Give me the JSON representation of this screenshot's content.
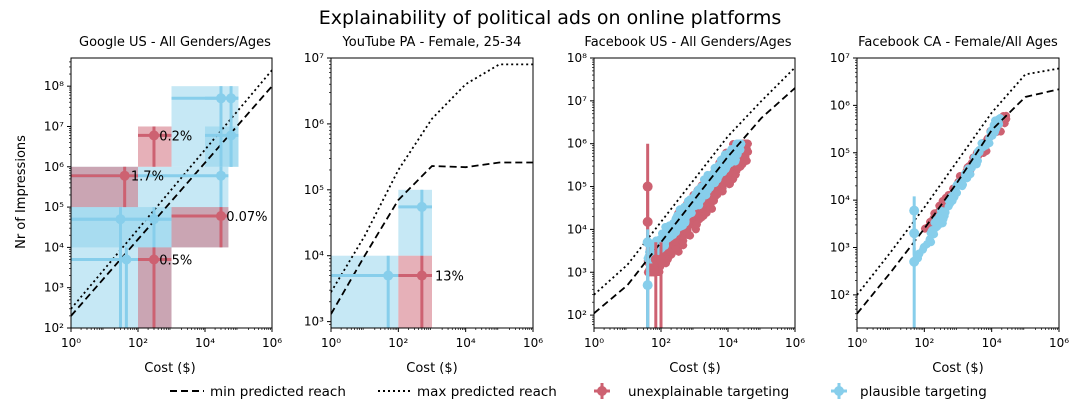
{
  "title": "Explainability of political ads on online platforms",
  "colors": {
    "unexplainable": "#cd6171",
    "plausible": "#87ceeb",
    "line": "#000000"
  },
  "legend": {
    "min": "min predicted reach",
    "max": "max predicted reach",
    "unexplainable": "unexplainable targeting",
    "plausible": "plausible targeting"
  },
  "chart_data": [
    {
      "type": "scatter",
      "title": "Google US - All Genders/Ages",
      "xlabel": "Cost ($)",
      "ylabel": "Nr of Impressions",
      "xscale": "log",
      "yscale": "log",
      "xlim": [
        1,
        1000000
      ],
      "ylim": [
        100,
        500000000
      ],
      "xticks": [
        1,
        100,
        10000,
        1000000
      ],
      "yticks": [
        100,
        1000,
        10000,
        100000,
        1000000,
        10000000,
        100000000
      ],
      "min_reach": [
        [
          1,
          200
        ],
        [
          1000000,
          100000000
        ]
      ],
      "max_reach": [
        [
          1,
          300
        ],
        [
          1000000,
          250000000
        ]
      ],
      "boxes": [
        {
          "cls": "plausible",
          "x": [
            1,
            1000
          ],
          "y": [
            100,
            100000
          ]
        },
        {
          "cls": "plausible",
          "x": [
            1,
            50000
          ],
          "y": [
            10000,
            1000000
          ]
        },
        {
          "cls": "plausible",
          "x": [
            1000,
            100000
          ],
          "y": [
            1000000,
            100000000
          ]
        },
        {
          "cls": "plausible",
          "x": [
            10000,
            100000
          ],
          "y": [
            1000000,
            10000000
          ]
        },
        {
          "cls": "unexplainable",
          "x": [
            100,
            1000
          ],
          "y": [
            1000000,
            10000000
          ]
        },
        {
          "cls": "unexplainable",
          "x": [
            1,
            100
          ],
          "y": [
            100000,
            1000000
          ]
        },
        {
          "cls": "unexplainable",
          "x": [
            1000,
            50000
          ],
          "y": [
            10000,
            100000
          ]
        },
        {
          "cls": "unexplainable",
          "x": [
            100,
            1000
          ],
          "y": [
            100,
            10000
          ]
        }
      ],
      "points": [
        {
          "cls": "plausible",
          "x": 30,
          "y": 50000,
          "xerr": [
            1,
            1000
          ],
          "yerr": [
            100,
            100000
          ]
        },
        {
          "cls": "plausible",
          "x": 45,
          "y": 5000,
          "xerr": [
            1,
            100
          ],
          "yerr": [
            100,
            10000
          ]
        },
        {
          "cls": "plausible",
          "x": 300,
          "y": 50000,
          "xerr": [
            1,
            1000
          ],
          "yerr": [
            100,
            100000
          ]
        },
        {
          "cls": "plausible",
          "x": 30000,
          "y": 600000,
          "xerr": [
            1,
            50000
          ],
          "yerr": [
            10000,
            1000000
          ]
        },
        {
          "cls": "plausible",
          "x": 30000,
          "y": 50000000,
          "xerr": [
            1000,
            100000
          ],
          "yerr": [
            1000000,
            100000000
          ]
        },
        {
          "cls": "plausible",
          "x": 60000,
          "y": 50000000,
          "xerr": [
            10000,
            100000
          ],
          "yerr": [
            1000000,
            100000000
          ]
        },
        {
          "cls": "plausible",
          "x": 60000,
          "y": 6000000,
          "xerr": [
            10000,
            100000
          ],
          "yerr": [
            1000000,
            10000000
          ]
        },
        {
          "cls": "unexplainable",
          "x": 300,
          "y": 6000000,
          "xerr": [
            100,
            1000
          ],
          "yerr": [
            1000000,
            10000000
          ]
        },
        {
          "cls": "unexplainable",
          "x": 40,
          "y": 600000,
          "xerr": [
            1,
            100
          ],
          "yerr": [
            100000,
            1000000
          ]
        },
        {
          "cls": "unexplainable",
          "x": 30000,
          "y": 60000,
          "xerr": [
            1000,
            50000
          ],
          "yerr": [
            10000,
            100000
          ]
        },
        {
          "cls": "unexplainable",
          "x": 300,
          "y": 5000,
          "xerr": [
            100,
            1000
          ],
          "yerr": [
            100,
            10000
          ]
        }
      ],
      "annotations": [
        {
          "text": "0.2%",
          "x": 350,
          "y": 6000000
        },
        {
          "text": "1.7%",
          "x": 50,
          "y": 600000
        },
        {
          "text": "0.07%",
          "x": 35000,
          "y": 60000
        },
        {
          "text": "0.5%",
          "x": 350,
          "y": 5000
        }
      ]
    },
    {
      "type": "scatter",
      "title": "YouTube PA - Female, 25-34",
      "xlabel": "Cost ($)",
      "ylabel": "",
      "xscale": "log",
      "yscale": "log",
      "xlim": [
        1,
        1000000
      ],
      "ylim": [
        800,
        10000000
      ],
      "xticks": [
        1,
        100,
        10000,
        1000000
      ],
      "yticks": [
        1000,
        10000,
        100000,
        1000000,
        10000000
      ],
      "min_reach": [
        [
          1,
          1300
        ],
        [
          10,
          10000
        ],
        [
          100,
          70000
        ],
        [
          1000,
          230000
        ],
        [
          10000,
          220000
        ],
        [
          100000,
          260000
        ],
        [
          1000000,
          260000
        ]
      ],
      "max_reach": [
        [
          1,
          2800
        ],
        [
          10,
          20000
        ],
        [
          100,
          200000
        ],
        [
          1000,
          1200000
        ],
        [
          10000,
          4000000
        ],
        [
          100000,
          8000000
        ],
        [
          1000000,
          8000000
        ]
      ],
      "boxes": [
        {
          "cls": "plausible",
          "x": [
            1,
            100
          ],
          "y": [
            800,
            10000
          ]
        },
        {
          "cls": "plausible",
          "x": [
            100,
            1000
          ],
          "y": [
            10000,
            100000
          ]
        },
        {
          "cls": "unexplainable",
          "x": [
            100,
            1000
          ],
          "y": [
            800,
            10000
          ]
        }
      ],
      "points": [
        {
          "cls": "plausible",
          "x": 50,
          "y": 5000,
          "xerr": [
            1,
            100
          ],
          "yerr": [
            800,
            10000
          ]
        },
        {
          "cls": "plausible",
          "x": 500,
          "y": 55000,
          "xerr": [
            100,
            1000
          ],
          "yerr": [
            10000,
            100000
          ]
        },
        {
          "cls": "unexplainable",
          "x": 500,
          "y": 5000,
          "xerr": [
            100,
            1000
          ],
          "yerr": [
            800,
            10000
          ]
        }
      ],
      "annotations": [
        {
          "text": "13%",
          "x": 1000,
          "y": 5000
        }
      ]
    },
    {
      "type": "scatter",
      "title": "Facebook  US - All Genders/Ages",
      "xlabel": "Cost ($)",
      "ylabel": "",
      "xscale": "log",
      "yscale": "log",
      "xlim": [
        1,
        1000000
      ],
      "ylim": [
        50,
        100000000
      ],
      "xticks": [
        1,
        100,
        10000,
        1000000
      ],
      "yticks": [
        100,
        1000,
        10000,
        100000,
        1000000,
        10000000,
        100000000
      ],
      "min_reach": [
        [
          1,
          110
        ],
        [
          10,
          500
        ],
        [
          100,
          5000
        ],
        [
          1000,
          50000
        ],
        [
          10000,
          500000
        ],
        [
          100000,
          4000000
        ],
        [
          1000000,
          20000000
        ]
      ],
      "max_reach": [
        [
          1,
          300
        ],
        [
          10,
          1500
        ],
        [
          100,
          15000
        ],
        [
          1000,
          150000
        ],
        [
          10000,
          1500000
        ],
        [
          100000,
          10000000
        ],
        [
          1000000,
          60000000
        ]
      ],
      "clouds": [
        {
          "cls": "unexplainable",
          "x": [
            40,
            40000
          ],
          "y": [
            1000,
            1000000
          ]
        },
        {
          "cls": "plausible",
          "x": [
            40,
            25000
          ],
          "y": [
            2000,
            1000000
          ]
        }
      ],
      "points": [
        {
          "cls": "unexplainable",
          "x": 40,
          "y": 100000,
          "xerr": [
            40,
            40
          ],
          "yerr": [
            50,
            1000000
          ]
        },
        {
          "cls": "unexplainable",
          "x": 40,
          "y": 15000,
          "xerr": [
            40,
            40
          ],
          "yerr": [
            50,
            100000
          ]
        },
        {
          "cls": "unexplainable",
          "x": 70,
          "y": 2000,
          "xerr": [
            70,
            70
          ],
          "yerr": [
            50,
            5000
          ]
        },
        {
          "cls": "unexplainable",
          "x": 100,
          "y": 2000,
          "xerr": [
            100,
            100
          ],
          "yerr": [
            50,
            5000
          ]
        },
        {
          "cls": "plausible",
          "x": 40,
          "y": 5000,
          "xerr": [
            40,
            40
          ],
          "yerr": [
            50,
            10000
          ]
        },
        {
          "cls": "plausible",
          "x": 40,
          "y": 500,
          "xerr": [
            40,
            40
          ],
          "yerr": [
            50,
            1000
          ]
        }
      ],
      "annotations": []
    },
    {
      "type": "scatter",
      "title": "Facebook CA - Female/All Ages",
      "xlabel": "Cost ($)",
      "ylabel": "",
      "xscale": "log",
      "yscale": "log",
      "xlim": [
        1,
        1000000
      ],
      "ylim": [
        20,
        10000000
      ],
      "xticks": [
        1,
        100,
        10000,
        1000000
      ],
      "yticks": [
        100,
        1000,
        10000,
        100000,
        1000000,
        10000000
      ],
      "min_reach": [
        [
          1,
          40
        ],
        [
          10,
          300
        ],
        [
          100,
          2500
        ],
        [
          1000,
          25000
        ],
        [
          10000,
          300000
        ],
        [
          100000,
          1500000
        ],
        [
          1000000,
          2200000
        ]
      ],
      "max_reach": [
        [
          1,
          100
        ],
        [
          10,
          800
        ],
        [
          100,
          7000
        ],
        [
          1000,
          70000
        ],
        [
          10000,
          700000
        ],
        [
          100000,
          4500000
        ],
        [
          1000000,
          6000000
        ]
      ],
      "clouds": [
        {
          "cls": "unexplainable",
          "x": [
            100,
            30000
          ],
          "y": [
            2500,
            600000
          ]
        },
        {
          "cls": "plausible",
          "x": [
            50,
            20000
          ],
          "y": [
            500,
            600000
          ]
        }
      ],
      "points": [
        {
          "cls": "plausible",
          "x": 50,
          "y": 500,
          "xerr": [
            50,
            50
          ],
          "yerr": [
            20,
            1000
          ]
        },
        {
          "cls": "plausible",
          "x": 50,
          "y": 2000,
          "xerr": [
            50,
            50
          ],
          "yerr": [
            700,
            5000
          ]
        },
        {
          "cls": "plausible",
          "x": 50,
          "y": 6000,
          "xerr": [
            50,
            50
          ],
          "yerr": [
            2000,
            12000
          ]
        }
      ],
      "annotations": []
    }
  ]
}
